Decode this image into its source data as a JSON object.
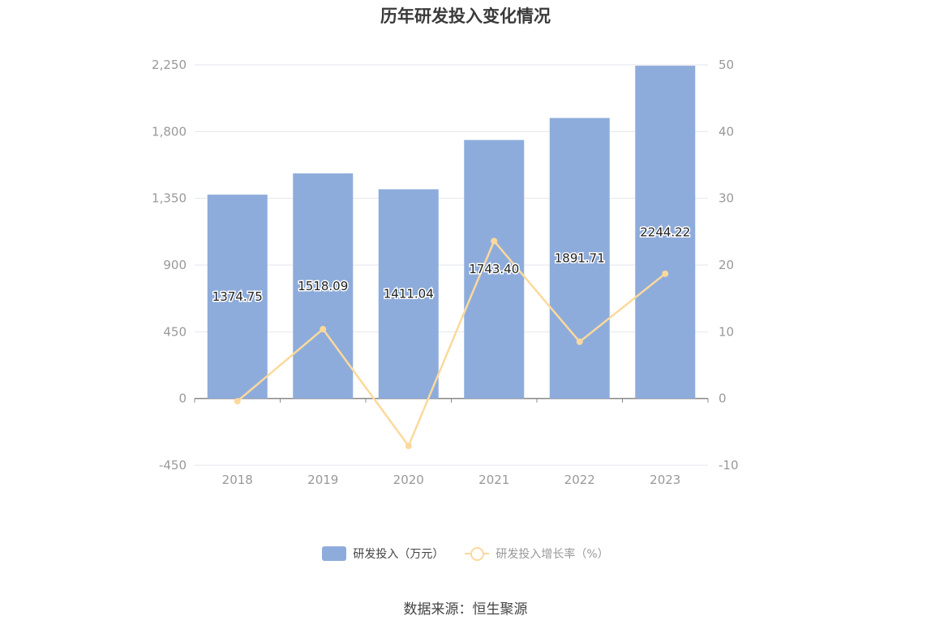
{
  "title": "历年研发投入变化情况",
  "source": "数据来源：恒生聚源",
  "legend": {
    "bar_label": "研发投入（万元）",
    "line_label": "研发投入增长率（%）"
  },
  "colors": {
    "bar": "#8eacdb",
    "line": "#fbd99c",
    "axis_text": "#999999",
    "grid": "#e3e6ee"
  },
  "chart_data": {
    "type": "bar",
    "categories": [
      "2018",
      "2019",
      "2020",
      "2021",
      "2022",
      "2023"
    ],
    "series": [
      {
        "name": "研发投入（万元）",
        "type": "bar",
        "axis": "left",
        "values": [
          1374.75,
          1518.09,
          1411.04,
          1743.4,
          1891.71,
          2244.22
        ],
        "labels": [
          "1374.75",
          "1518.09",
          "1411.04",
          "1743.40",
          "1891.71",
          "2244.22"
        ]
      },
      {
        "name": "研发投入增长率（%）",
        "type": "line",
        "axis": "right",
        "values": [
          -0.4,
          10.4,
          -7.1,
          23.6,
          8.5,
          18.7
        ]
      }
    ],
    "y_left": {
      "min": -450,
      "max": 2250,
      "ticks": [
        -450,
        0,
        450,
        900,
        1350,
        1800,
        2250
      ],
      "tick_labels": [
        "-450",
        "0",
        "450",
        "900",
        "1,350",
        "1,800",
        "2,250"
      ]
    },
    "y_right": {
      "min": -10,
      "max": 50,
      "ticks": [
        -10,
        0,
        10,
        20,
        30,
        40,
        50
      ],
      "tick_labels": [
        "-10",
        "0",
        "10",
        "20",
        "30",
        "40",
        "50"
      ]
    },
    "grid": true,
    "legend_position": "bottom"
  }
}
